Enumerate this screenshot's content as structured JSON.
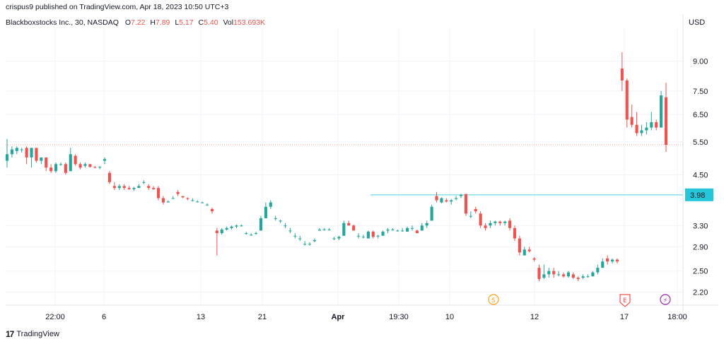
{
  "header": {
    "published": "crispus9 published on TradingView.com, Apr 18, 2023 10:50 UTC+3"
  },
  "legend": {
    "symbol": "Blackboxstocks Inc., 30, NASDAQ",
    "o_label": "O",
    "o_value": "7.22",
    "h_label": "H",
    "h_value": "7.89",
    "l_label": "L",
    "l_value": "5.17",
    "c_label": "C",
    "c_value": "5.40",
    "vol_label": "Vol",
    "vol_value": "153.693K"
  },
  "currency": "USD",
  "colors": {
    "up": "#26a69a",
    "down": "#ef5350",
    "level_line": "#4dd0e1",
    "level_label_bg": "#26c6da",
    "dotted_line": "#ef9a9a",
    "grid": "#f0f3fa",
    "axis_text": "#131722"
  },
  "footer": {
    "logo_text": "17",
    "brand": "TradingView"
  },
  "chart_data": {
    "type": "candlestick",
    "ylabel": "USD",
    "y_axis": "log",
    "ylim": [
      2.03,
      11.0
    ],
    "y_ticks": [
      "9.00",
      "7.50",
      "6.50",
      "5.50",
      "4.50",
      "3.98",
      "3.30",
      "2.90",
      "2.50",
      "2.20"
    ],
    "x_ticks": [
      "22:00",
      "6",
      "13",
      "21",
      "Apr",
      "19:30",
      "10",
      "12",
      "17",
      "18:00"
    ],
    "horizontal_level": {
      "value": 3.98,
      "label": "3.98"
    },
    "last_price_line": 5.4,
    "event_markers": [
      {
        "label": "S",
        "x_tick": "10",
        "color": "#f7a21b"
      },
      {
        "label": "E",
        "x_tick": "17",
        "color": "#ef5350"
      },
      {
        "label": "⚡",
        "x_tick": "17",
        "color": "#9c27b0"
      }
    ],
    "candles": [
      [
        4.9,
        5.6,
        4.7,
        5.1
      ],
      [
        5.1,
        5.35,
        5.0,
        5.25
      ],
      [
        5.2,
        5.35,
        5.1,
        5.3
      ],
      [
        5.25,
        5.3,
        5.15,
        5.25
      ],
      [
        5.3,
        5.35,
        4.8,
        5.0
      ],
      [
        5.0,
        5.3,
        4.7,
        5.3
      ],
      [
        5.3,
        5.3,
        4.85,
        4.9
      ],
      [
        4.9,
        5.0,
        4.8,
        5.0
      ],
      [
        5.0,
        5.0,
        4.6,
        4.7
      ],
      [
        4.7,
        4.8,
        4.55,
        4.6
      ],
      [
        4.6,
        4.85,
        4.55,
        4.8
      ],
      [
        4.8,
        4.85,
        4.75,
        4.8
      ],
      [
        4.8,
        4.85,
        4.5,
        4.55
      ],
      [
        4.6,
        5.3,
        4.6,
        5.1
      ],
      [
        5.05,
        5.1,
        4.75,
        4.8
      ],
      [
        4.8,
        4.85,
        4.65,
        4.7
      ],
      [
        4.75,
        4.85,
        4.7,
        4.8
      ],
      [
        4.8,
        4.8,
        4.7,
        4.72
      ],
      [
        4.72,
        4.75,
        4.68,
        4.7
      ],
      [
        4.7,
        4.75,
        4.65,
        4.72
      ],
      [
        4.9,
        5.0,
        4.8,
        4.95
      ],
      [
        4.55,
        4.6,
        4.25,
        4.3
      ],
      [
        4.2,
        4.3,
        4.1,
        4.15
      ],
      [
        4.15,
        4.25,
        4.1,
        4.2
      ],
      [
        4.2,
        4.25,
        4.1,
        4.15
      ],
      [
        4.15,
        4.2,
        4.1,
        4.12
      ],
      [
        4.12,
        4.18,
        4.08,
        4.15
      ],
      [
        4.15,
        4.25,
        4.15,
        4.2
      ],
      [
        4.3,
        4.35,
        4.25,
        4.3
      ],
      [
        4.2,
        4.25,
        4.1,
        4.15
      ],
      [
        4.15,
        4.2,
        4.1,
        4.12
      ],
      [
        4.15,
        4.2,
        3.85,
        3.9
      ],
      [
        3.9,
        3.95,
        3.75,
        3.8
      ],
      [
        3.8,
        3.85,
        3.8,
        3.82
      ],
      [
        3.9,
        3.95,
        3.88,
        3.9
      ],
      [
        4.05,
        4.1,
        3.95,
        4.0
      ],
      [
        3.95,
        3.95,
        3.9,
        3.92
      ],
      [
        3.9,
        3.92,
        3.85,
        3.88
      ],
      [
        3.85,
        3.9,
        3.82,
        3.85
      ],
      [
        3.82,
        3.85,
        3.8,
        3.82
      ],
      [
        3.8,
        3.82,
        3.78,
        3.8
      ],
      [
        3.75,
        3.78,
        3.72,
        3.75
      ],
      [
        3.65,
        3.68,
        3.55,
        3.6
      ],
      [
        3.2,
        3.25,
        2.75,
        3.15
      ],
      [
        3.15,
        3.25,
        3.12,
        3.22
      ],
      [
        3.22,
        3.28,
        3.2,
        3.25
      ],
      [
        3.25,
        3.3,
        3.22,
        3.28
      ],
      [
        3.28,
        3.32,
        3.25,
        3.3
      ],
      [
        3.3,
        3.32,
        3.28,
        3.3
      ],
      [
        3.15,
        3.18,
        3.12,
        3.15
      ],
      [
        3.12,
        3.15,
        3.1,
        3.12
      ],
      [
        3.15,
        3.18,
        3.12,
        3.15
      ],
      [
        3.2,
        3.5,
        3.2,
        3.45
      ],
      [
        3.45,
        3.8,
        3.45,
        3.7
      ],
      [
        3.7,
        3.85,
        3.65,
        3.8
      ],
      [
        3.45,
        3.5,
        3.4,
        3.45
      ],
      [
        3.4,
        3.42,
        3.35,
        3.4
      ],
      [
        3.3,
        3.35,
        3.25,
        3.3
      ],
      [
        3.2,
        3.25,
        3.15,
        3.2
      ],
      [
        3.1,
        3.15,
        3.05,
        3.1
      ],
      [
        3.05,
        3.1,
        3.0,
        3.05
      ],
      [
        2.95,
        3.0,
        2.92,
        2.95
      ],
      [
        2.95,
        2.98,
        2.92,
        2.95
      ],
      [
        3.0,
        3.05,
        2.98,
        3.02
      ],
      [
        3.2,
        3.25,
        3.2,
        3.22
      ],
      [
        3.22,
        3.25,
        3.2,
        3.22
      ],
      [
        3.22,
        3.25,
        3.2,
        3.22
      ],
      [
        3.05,
        3.08,
        3.02,
        3.05
      ],
      [
        3.05,
        3.1,
        3.02,
        3.08
      ],
      [
        3.1,
        3.4,
        3.1,
        3.35
      ],
      [
        3.35,
        3.4,
        3.3,
        3.3
      ],
      [
        3.3,
        3.32,
        3.2,
        3.2
      ],
      [
        3.1,
        3.15,
        3.05,
        3.1
      ],
      [
        3.08,
        3.12,
        3.05,
        3.08
      ],
      [
        3.05,
        3.2,
        3.05,
        3.18
      ],
      [
        3.18,
        3.2,
        3.05,
        3.08
      ],
      [
        3.1,
        3.12,
        3.05,
        3.1
      ],
      [
        3.1,
        3.2,
        3.1,
        3.18
      ],
      [
        3.2,
        3.25,
        3.15,
        3.22
      ],
      [
        3.22,
        3.25,
        3.2,
        3.22
      ],
      [
        3.2,
        3.22,
        3.18,
        3.2
      ],
      [
        3.2,
        3.25,
        3.18,
        3.2
      ],
      [
        3.18,
        3.28,
        3.18,
        3.25
      ],
      [
        3.25,
        3.3,
        3.2,
        3.25
      ],
      [
        3.2,
        3.22,
        3.15,
        3.15
      ],
      [
        3.2,
        3.35,
        3.2,
        3.3
      ],
      [
        3.3,
        3.4,
        3.25,
        3.35
      ],
      [
        3.4,
        3.75,
        3.4,
        3.7
      ],
      [
        3.95,
        4.05,
        3.8,
        3.85
      ],
      [
        3.8,
        3.92,
        3.78,
        3.9
      ],
      [
        3.85,
        3.9,
        3.8,
        3.82
      ],
      [
        3.82,
        3.88,
        3.75,
        3.85
      ],
      [
        3.88,
        3.95,
        3.85,
        3.9
      ],
      [
        3.95,
        4.0,
        3.9,
        3.98
      ],
      [
        4.0,
        4.0,
        3.5,
        3.55
      ],
      [
        3.5,
        3.6,
        3.45,
        3.5
      ],
      [
        3.65,
        3.7,
        3.55,
        3.6
      ],
      [
        3.55,
        3.6,
        3.25,
        3.3
      ],
      [
        3.3,
        3.35,
        3.2,
        3.25
      ],
      [
        3.3,
        3.4,
        3.25,
        3.35
      ],
      [
        3.35,
        3.4,
        3.3,
        3.38
      ],
      [
        3.38,
        3.4,
        3.3,
        3.35
      ],
      [
        3.35,
        3.4,
        3.3,
        3.38
      ],
      [
        3.4,
        3.45,
        3.2,
        3.25
      ],
      [
        3.25,
        3.3,
        3.0,
        3.05
      ],
      [
        3.05,
        3.1,
        2.75,
        2.8
      ],
      [
        2.75,
        2.9,
        2.75,
        2.85
      ],
      [
        2.85,
        2.9,
        2.8,
        2.82
      ],
      [
        2.7,
        2.72,
        2.65,
        2.68
      ],
      [
        2.55,
        2.6,
        2.35,
        2.38
      ],
      [
        2.4,
        2.6,
        2.38,
        2.45
      ],
      [
        2.45,
        2.55,
        2.4,
        2.5
      ],
      [
        2.5,
        2.55,
        2.4,
        2.45
      ],
      [
        2.45,
        2.5,
        2.42,
        2.45
      ],
      [
        2.45,
        2.48,
        2.4,
        2.42
      ],
      [
        2.42,
        2.5,
        2.4,
        2.48
      ],
      [
        2.45,
        2.48,
        2.38,
        2.4
      ],
      [
        2.4,
        2.42,
        2.35,
        2.38
      ],
      [
        2.4,
        2.45,
        2.38,
        2.42
      ],
      [
        2.42,
        2.45,
        2.4,
        2.42
      ],
      [
        2.42,
        2.5,
        2.42,
        2.48
      ],
      [
        2.48,
        2.6,
        2.45,
        2.55
      ],
      [
        2.55,
        2.7,
        2.55,
        2.65
      ],
      [
        2.7,
        2.75,
        2.6,
        2.65
      ],
      [
        2.65,
        2.7,
        2.62,
        2.68
      ],
      [
        2.68,
        2.7,
        2.62,
        2.65
      ],
      [
        8.6,
        9.5,
        7.5,
        8.0
      ],
      [
        8.0,
        8.1,
        6.0,
        6.3
      ],
      [
        6.4,
        6.9,
        6.0,
        6.1
      ],
      [
        6.1,
        6.6,
        5.7,
        5.8
      ],
      [
        5.8,
        6.1,
        5.7,
        5.9
      ],
      [
        5.9,
        6.2,
        5.75,
        6.0
      ],
      [
        6.0,
        6.6,
        5.9,
        6.2
      ],
      [
        6.2,
        6.3,
        5.9,
        6.0
      ],
      [
        6.0,
        7.5,
        6.0,
        7.3
      ],
      [
        7.22,
        7.89,
        5.17,
        5.4
      ]
    ]
  }
}
